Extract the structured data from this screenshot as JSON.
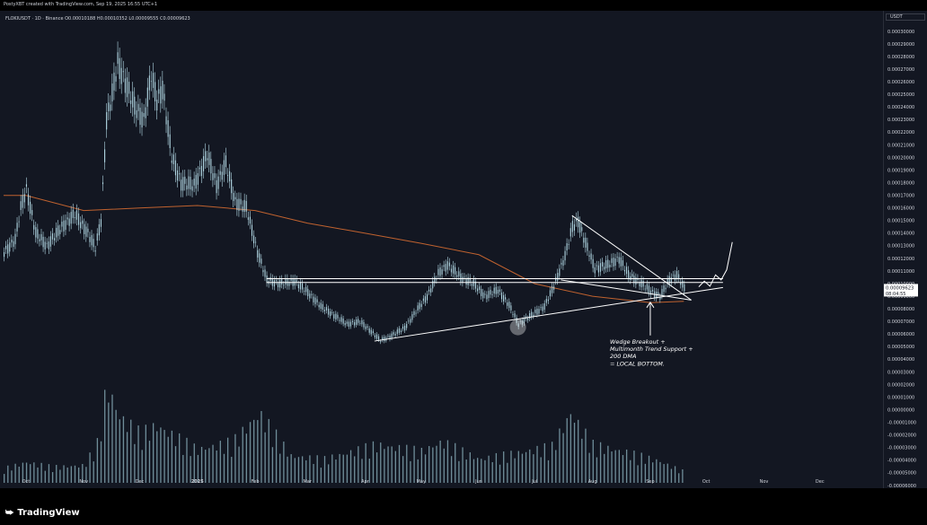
{
  "header": {
    "created_note": "PostyXBT created with TradingView.com, Sep 19, 2025 16:55 UTC+1",
    "symbol_line": "FLOKIUSDT · 1D · Binance  O0.00010188  H0.00010352  L0.00009555  C0.00009623",
    "currency": "USDT"
  },
  "footer": {
    "brand": "TradingView",
    "logo_icon": "tradingview-logo-icon"
  },
  "colors": {
    "background": "#131722",
    "candles": "#b2d8e4",
    "volume": "#8fb6c2",
    "dma": "#c0622f",
    "annotation": "#ffffff",
    "axis_text": "#d1d4dc"
  },
  "chart_data": {
    "type": "candlestick",
    "title": "",
    "x_labels": [
      "Oct",
      "Nov",
      "Dec",
      "2025",
      "Feb",
      "Mar",
      "Apr",
      "May",
      "Jun",
      "Jul",
      "Aug",
      "Sep",
      "Oct",
      "Nov",
      "Dec"
    ],
    "x_label_dates": [
      "2024-10-01",
      "2024-11-01",
      "2024-12-01",
      "2025-01-01",
      "2025-02-01",
      "2025-03-01",
      "2025-04-01",
      "2025-05-01",
      "2025-06-01",
      "2025-07-01",
      "2025-08-01",
      "2025-09-01",
      "2025-10-01",
      "2025-11-01",
      "2025-12-01"
    ],
    "price_ticks": [
      "0.00030000",
      "0.00029000",
      "0.00028000",
      "0.00027000",
      "0.00026000",
      "0.00025000",
      "0.00024000",
      "0.00023000",
      "0.00022000",
      "0.00021000",
      "0.00020000",
      "0.00019000",
      "0.00018000",
      "0.00017000",
      "0.00016000",
      "0.00015000",
      "0.00014000",
      "0.00013000",
      "0.00012000",
      "0.00011000",
      "0.00010000",
      "0.00009000",
      "0.00008000",
      "0.00007000",
      "0.00006000",
      "0.00005000",
      "0.00004000",
      "0.00003000",
      "0.00002000",
      "0.00001000",
      "0.00000000",
      "-0.00001000",
      "-0.00002000",
      "-0.00003000",
      "-0.00004000",
      "-0.00005000",
      "-0.00006000"
    ],
    "ylim": [
      -6e-05,
      0.0003
    ],
    "last_price": {
      "value": "0.00009623",
      "countdown": "08:04:55"
    },
    "price_series": [
      [
        "2024-09-19",
        0.000125
      ],
      [
        "2024-09-25",
        0.000135
      ],
      [
        "2024-09-28",
        0.00016
      ],
      [
        "2024-10-01",
        0.000175
      ],
      [
        "2024-10-06",
        0.00014
      ],
      [
        "2024-10-12",
        0.00013
      ],
      [
        "2024-10-20",
        0.000145
      ],
      [
        "2024-10-27",
        0.000155
      ],
      [
        "2024-11-03",
        0.00014
      ],
      [
        "2024-11-07",
        0.000128
      ],
      [
        "2024-11-10",
        0.00015
      ],
      [
        "2024-11-13",
        0.00023
      ],
      [
        "2024-11-16",
        0.00025
      ],
      [
        "2024-11-19",
        0.000275
      ],
      [
        "2024-11-23",
        0.00026
      ],
      [
        "2024-11-28",
        0.00024
      ],
      [
        "2024-12-03",
        0.00023
      ],
      [
        "2024-12-07",
        0.000265
      ],
      [
        "2024-12-10",
        0.000245
      ],
      [
        "2024-12-13",
        0.000255
      ],
      [
        "2024-12-18",
        0.0002
      ],
      [
        "2024-12-23",
        0.00018
      ],
      [
        "2024-12-30",
        0.000178
      ],
      [
        "2025-01-06",
        0.000202
      ],
      [
        "2025-01-11",
        0.000178
      ],
      [
        "2025-01-16",
        0.000195
      ],
      [
        "2025-01-21",
        0.000165
      ],
      [
        "2025-01-27",
        0.00016
      ],
      [
        "2025-02-02",
        0.000125
      ],
      [
        "2025-02-07",
        0.000103
      ],
      [
        "2025-02-14",
        0.0001
      ],
      [
        "2025-02-22",
        0.000102
      ],
      [
        "2025-03-01",
        9.3e-05
      ],
      [
        "2025-03-08",
        8.2e-05
      ],
      [
        "2025-03-15",
        7.5e-05
      ],
      [
        "2025-03-22",
        6.8e-05
      ],
      [
        "2025-03-29",
        7e-05
      ],
      [
        "2025-04-04",
        6.2e-05
      ],
      [
        "2025-04-09",
        5.5e-05
      ],
      [
        "2025-04-14",
        5.8e-05
      ],
      [
        "2025-04-22",
        6.5e-05
      ],
      [
        "2025-04-29",
        8e-05
      ],
      [
        "2025-05-04",
        9e-05
      ],
      [
        "2025-05-10",
        0.000108
      ],
      [
        "2025-05-15",
        0.000115
      ],
      [
        "2025-05-22",
        0.000105
      ],
      [
        "2025-05-29",
        0.0001
      ],
      [
        "2025-06-04",
        9e-05
      ],
      [
        "2025-06-11",
        9.5e-05
      ],
      [
        "2025-06-17",
        8.3e-05
      ],
      [
        "2025-06-22",
        6.8e-05
      ],
      [
        "2025-06-29",
        7.5e-05
      ],
      [
        "2025-07-06",
        8.2e-05
      ],
      [
        "2025-07-11",
        9.8e-05
      ],
      [
        "2025-07-17",
        0.000122
      ],
      [
        "2025-07-21",
        0.000145
      ],
      [
        "2025-07-24",
        0.00015
      ],
      [
        "2025-07-28",
        0.000132
      ],
      [
        "2025-08-02",
        0.000112
      ],
      [
        "2025-08-09",
        0.000115
      ],
      [
        "2025-08-15",
        0.00012
      ],
      [
        "2025-08-20",
        0.000107
      ],
      [
        "2025-08-27",
        0.0001
      ],
      [
        "2025-09-02",
        9.3e-05
      ],
      [
        "2025-09-06",
        9e-05
      ],
      [
        "2025-09-11",
        0.000103
      ],
      [
        "2025-09-15",
        0.000107
      ],
      [
        "2025-09-19",
        9.62e-05
      ]
    ],
    "moving_average": {
      "label": "200 DMA",
      "points": [
        [
          "2024-09-19",
          0.00017
        ],
        [
          "2024-10-01",
          0.00017
        ],
        [
          "2024-11-01",
          0.000158
        ],
        [
          "2024-12-01",
          0.00016
        ],
        [
          "2025-01-01",
          0.000162
        ],
        [
          "2025-02-01",
          0.000158
        ],
        [
          "2025-03-01",
          0.000148
        ],
        [
          "2025-04-01",
          0.00014
        ],
        [
          "2025-05-01",
          0.000132
        ],
        [
          "2025-06-01",
          0.000123
        ],
        [
          "2025-07-01",
          0.0001
        ],
        [
          "2025-08-01",
          9e-05
        ],
        [
          "2025-09-01",
          8.5e-05
        ],
        [
          "2025-09-19",
          8.6e-05
        ]
      ]
    },
    "volume_series": [
      [
        "2024-09-19",
        9
      ],
      [
        "2024-10-01",
        13
      ],
      [
        "2024-10-15",
        10
      ],
      [
        "2024-11-01",
        11
      ],
      [
        "2024-11-09",
        27
      ],
      [
        "2024-11-13",
        62
      ],
      [
        "2024-11-20",
        42
      ],
      [
        "2024-12-01",
        31
      ],
      [
        "2024-12-10",
        36
      ],
      [
        "2025-01-01",
        21
      ],
      [
        "2025-01-20",
        26
      ],
      [
        "2025-02-03",
        44
      ],
      [
        "2025-02-20",
        17
      ],
      [
        "2025-03-10",
        15
      ],
      [
        "2025-04-07",
        24
      ],
      [
        "2025-05-01",
        20
      ],
      [
        "2025-05-12",
        26
      ],
      [
        "2025-06-01",
        15
      ],
      [
        "2025-06-22",
        19
      ],
      [
        "2025-07-10",
        23
      ],
      [
        "2025-07-20",
        44
      ],
      [
        "2025-08-01",
        24
      ],
      [
        "2025-08-20",
        19
      ],
      [
        "2025-09-05",
        14
      ],
      [
        "2025-09-19",
        7
      ]
    ],
    "annotation_lines": [
      {
        "name": "support-trendline",
        "from": [
          "2025-04-06",
          5.45e-05
        ],
        "to": [
          "2025-10-10",
          9.7e-05
        ]
      },
      {
        "name": "wedge-upper-line",
        "from": [
          "2025-07-21",
          0.000154
        ],
        "to": [
          "2025-09-23",
          8.7e-05
        ]
      },
      {
        "name": "wedge-lower-line",
        "from": [
          "2025-07-15",
          0.000103
        ],
        "to": [
          "2025-09-23",
          8.7e-05
        ]
      },
      {
        "name": "horizontal-resistance-upper",
        "from": [
          "2025-02-07",
          0.000104
        ],
        "to": [
          "2025-10-10",
          0.000104
        ]
      },
      {
        "name": "horizontal-resistance-lower",
        "from": [
          "2025-02-07",
          0.000101
        ],
        "to": [
          "2025-10-10",
          0.000101
        ]
      }
    ],
    "projection_path": [
      [
        "2025-09-27",
        9.75e-05
      ],
      [
        "2025-09-30",
        0.000102
      ],
      [
        "2025-10-03",
        9.8e-05
      ],
      [
        "2025-10-06",
        0.000107
      ],
      [
        "2025-10-09",
        0.000103
      ],
      [
        "2025-10-12",
        0.000111
      ],
      [
        "2025-10-15",
        0.000133
      ]
    ],
    "highlight_marker": [
      "2025-06-22",
      6.55e-05
    ],
    "arrow_target": [
      "2025-09-01",
      8.6e-05
    ],
    "annotation_text": [
      "Wedge Breakout +",
      "Multimonth Trend Support +",
      "200 DMA",
      "= LOCAL BOTTOM."
    ]
  }
}
